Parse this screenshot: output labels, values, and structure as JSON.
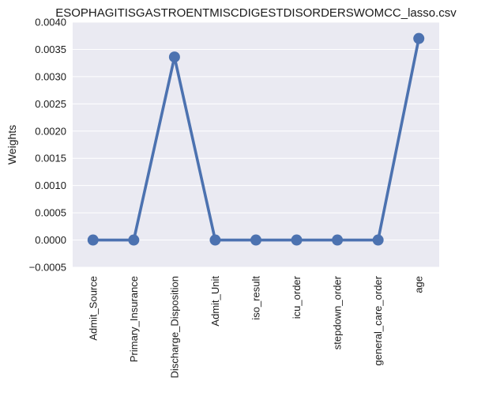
{
  "chart_data": {
    "type": "line",
    "title": "ESOPHAGITISGASTROENTMISCDIGESTDISORDERSWOMCC_lasso.csv",
    "xlabel": "",
    "ylabel": "Weights",
    "categories": [
      "Admit_Source",
      "Primary_Insurance",
      "Discharge_Disposition",
      "Admit_Unit",
      "iso_result",
      "icu_order",
      "stepdown_order",
      "general_care_order",
      "age"
    ],
    "values": [
      0.0,
      0.0,
      0.00336,
      0.0,
      0.0,
      0.0,
      0.0,
      0.0,
      0.0037
    ],
    "ylim": [
      -0.0005,
      0.004
    ],
    "yticks": [
      "−0.0005",
      "0.0000",
      "0.0005",
      "0.0010",
      "0.0015",
      "0.0020",
      "0.0025",
      "0.0030",
      "0.0035",
      "0.0040"
    ],
    "ytick_values": [
      -0.0005,
      0,
      0.0005,
      0.001,
      0.0015,
      0.002,
      0.0025,
      0.003,
      0.0035,
      0.004
    ],
    "grid": true,
    "markers": true,
    "colors": {
      "line": "#4c72b0",
      "background": "#eaeaf2",
      "grid": "#ffffff"
    }
  }
}
